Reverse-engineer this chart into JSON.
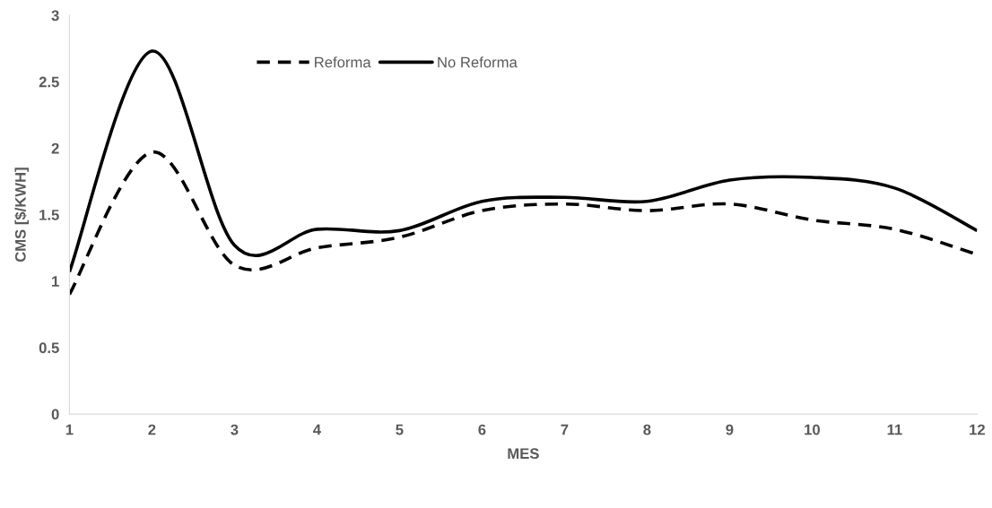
{
  "chart_data": {
    "type": "line",
    "xlabel": "MES",
    "ylabel": "CMS [$/KWH]",
    "x": [
      1,
      2,
      3,
      4,
      5,
      6,
      7,
      8,
      9,
      10,
      11,
      12
    ],
    "series": [
      {
        "name": "Reforma",
        "color": "#000000",
        "line_style": "dashed",
        "values": [
          0.9,
          1.97,
          1.12,
          1.25,
          1.33,
          1.53,
          1.58,
          1.53,
          1.58,
          1.46,
          1.39,
          1.2
        ]
      },
      {
        "name": "No Reforma",
        "color": "#000000",
        "line_style": "solid",
        "values": [
          1.07,
          2.73,
          1.27,
          1.39,
          1.38,
          1.6,
          1.63,
          1.6,
          1.76,
          1.78,
          1.7,
          1.38
        ]
      }
    ],
    "xlim": [
      1,
      12
    ],
    "xticks": [
      1,
      2,
      3,
      4,
      5,
      6,
      7,
      8,
      9,
      10,
      11,
      12
    ],
    "ylim": [
      0,
      3
    ],
    "yticks": [
      0,
      0.5,
      1,
      1.5,
      2,
      2.5,
      3
    ],
    "grid": false,
    "legend": "top",
    "marker": "none"
  }
}
